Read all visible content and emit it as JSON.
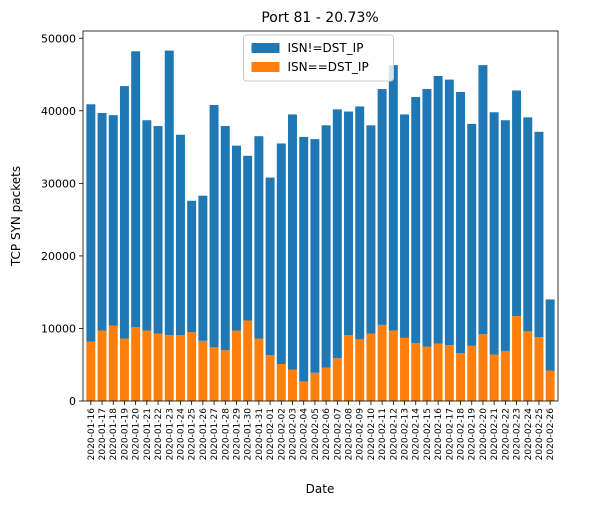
{
  "chart_data": {
    "type": "stacked_bar",
    "title": "Port 81 - 20.73%",
    "x_label": "Date",
    "y_label": "TCP SYN packets",
    "categories": [
      "2020-01-16",
      "2020-01-17",
      "2020-01-18",
      "2020-01-19",
      "2020-01-20",
      "2020-01-21",
      "2020-01-22",
      "2020-01-23",
      "2020-01-24",
      "2020-01-25",
      "2020-01-26",
      "2020-01-27",
      "2020-01-28",
      "2020-01-29",
      "2020-01-30",
      "2020-01-31",
      "2020-02-01",
      "2020-02-02",
      "2020-02-03",
      "2020-02-04",
      "2020-02-05",
      "2020-02-06",
      "2020-02-07",
      "2020-02-08",
      "2020-02-09",
      "2020-02-10",
      "2020-02-11",
      "2020-02-12",
      "2020-02-13",
      "2020-02-14",
      "2020-02-15",
      "2020-02-16",
      "2020-02-17",
      "2020-02-18",
      "2020-02-19",
      "2020-02-20",
      "2020-02-21",
      "2020-02-22",
      "2020-02-23",
      "2020-02-24",
      "2020-02-25",
      "2020-02-26"
    ],
    "series": [
      {
        "name": "ISN!=DST_IP",
        "color": "#1f77b4",
        "values": [
          32700,
          30000,
          29000,
          34800,
          38000,
          29000,
          28600,
          39200,
          27600,
          18100,
          20000,
          33400,
          30900,
          25500,
          22700,
          27900,
          24500,
          30400,
          35200,
          33700,
          32200,
          33400,
          34300,
          30800,
          32100,
          28700,
          32500,
          36600,
          30800,
          33900,
          35500,
          36900,
          36600,
          36000,
          30600,
          37100,
          33400,
          31800,
          31100,
          29500,
          28300,
          9800
        ]
      },
      {
        "name": "ISN==DST_IP",
        "color": "#ff7f0e",
        "values": [
          8200,
          9700,
          10400,
          8600,
          10200,
          9700,
          9300,
          9100,
          9100,
          9500,
          8300,
          7400,
          7000,
          9700,
          11100,
          8600,
          6300,
          5100,
          4300,
          2700,
          3900,
          4600,
          5900,
          9100,
          8500,
          9300,
          10500,
          9700,
          8700,
          8000,
          7500,
          7900,
          7700,
          6600,
          7600,
          9200,
          6400,
          6900,
          11700,
          9600,
          8800,
          4200
        ]
      }
    ],
    "ylim": [
      0,
      51000
    ],
    "yticks": [
      0,
      10000,
      20000,
      30000,
      40000,
      50000
    ],
    "legend": "upper center"
  }
}
